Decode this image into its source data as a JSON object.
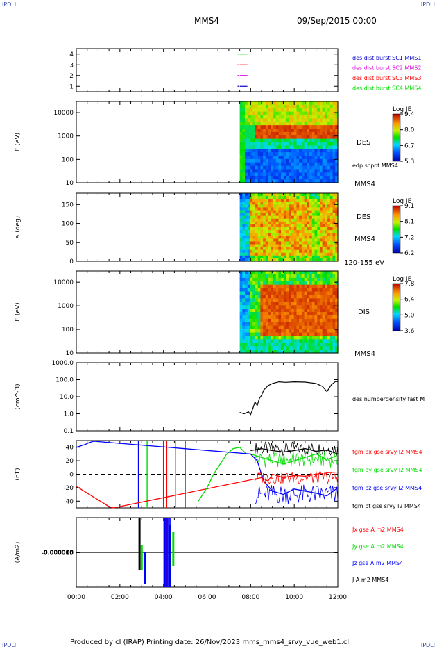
{
  "corners": {
    "tl": "IPDLI",
    "tr": "IPDLI",
    "bl": "IPDLI",
    "br": "IPDLI"
  },
  "header": {
    "title": "MMS4",
    "datetime": "09/Sep/2015 00:00"
  },
  "footer": {
    "text": "Produced by cl (IRAP)   Printing date: 26/Nov/2023   mms_mms4_srvy_vue_web1.cl"
  },
  "colors": {
    "red": "#ff0000",
    "green": "#00dd00",
    "blue": "#0000ff",
    "black": "#000000",
    "magenta": "#dd00dd",
    "legend_blue": "#0000cc"
  },
  "chart_data": [
    {
      "id": "burst-availability",
      "type": "scatter",
      "ylim": [
        0.5,
        4.5
      ],
      "yticks": [
        "1",
        "2",
        "3",
        "4"
      ],
      "legend": [
        {
          "label": "des dist burst SC1 MMS1",
          "color": "#0000cc"
        },
        {
          "label": "des dist burst SC2 MMS2",
          "color": "#dd00dd"
        },
        {
          "label": "des dist burst SC3 MMS3",
          "color": "#ff0000"
        },
        {
          "label": "des dist burst SC4 MMS4",
          "color": "#00dd00"
        }
      ],
      "series": [
        {
          "y": 4,
          "intervals": [
            [
              7.4,
              7.45
            ],
            [
              7.5,
              7.85
            ]
          ]
        },
        {
          "y": 3,
          "intervals": [
            [
              7.4,
              7.45
            ],
            [
              7.5,
              7.85
            ]
          ]
        },
        {
          "y": 2,
          "intervals": [
            [
              7.4,
              7.45
            ],
            [
              7.5,
              7.85
            ]
          ]
        },
        {
          "y": 1,
          "intervals": [
            [
              7.4,
              7.45
            ],
            [
              7.5,
              7.85
            ]
          ]
        }
      ]
    },
    {
      "id": "des-energy-spectrogram",
      "type": "heatmap",
      "ylabel": "E (eV)",
      "yscale": "log",
      "ylim": [
        10,
        30000
      ],
      "ytick_labels": [
        "10",
        "100",
        "1000",
        "10000"
      ],
      "side_labels": [
        "DES",
        "edp scpot MMS4",
        "MMS4"
      ],
      "colorbar": {
        "title": "Log JE",
        "ticks": [
          "9.4",
          "8.0",
          "6.7",
          "5.3"
        ],
        "range": [
          5.3,
          9.4
        ]
      },
      "data_start_hour": 7.5
    },
    {
      "id": "des-pitch-angle",
      "type": "heatmap",
      "ylabel": "a (deg)",
      "ylim": [
        0,
        180
      ],
      "ytick_labels": [
        "0",
        "50",
        "100",
        "150"
      ],
      "side_labels": [
        "DES",
        "MMS4",
        "120-155 eV"
      ],
      "colorbar": {
        "title": "Log JE",
        "ticks": [
          "9.1",
          "8.1",
          "7.2",
          "6.2"
        ],
        "range": [
          6.2,
          9.1
        ]
      },
      "data_start_hour": 7.5
    },
    {
      "id": "dis-energy-spectrogram",
      "type": "heatmap",
      "ylabel": "E (eV)",
      "yscale": "log",
      "ylim": [
        10,
        30000
      ],
      "ytick_labels": [
        "10",
        "100",
        "1000",
        "10000"
      ],
      "side_labels": [
        "DIS",
        "MMS4"
      ],
      "colorbar": {
        "title": "Log JE",
        "ticks": [
          "7.8",
          "6.4",
          "5.0",
          "3.6"
        ],
        "range": [
          3.6,
          7.8
        ]
      },
      "data_start_hour": 7.5
    },
    {
      "id": "density",
      "type": "line",
      "ylabel": "(cm^-3)",
      "yscale": "log",
      "ylim": [
        0.1,
        1000
      ],
      "ytick_labels": [
        "0.1",
        "1.0",
        "10.0",
        "100.0",
        "1000.0"
      ],
      "legend": [
        {
          "label": "des numberdensity fast M",
          "color": "#000000"
        }
      ],
      "series": [
        {
          "name": "des numberdensity fast M",
          "color": "#000000",
          "x": [
            7.5,
            7.7,
            7.9,
            8.0,
            8.1,
            8.2,
            8.3,
            8.4,
            8.5,
            8.6,
            8.8,
            9.0,
            9.3,
            9.6,
            10.0,
            10.5,
            11.0,
            11.3,
            11.5,
            11.7,
            11.9,
            12.0
          ],
          "y": [
            1.2,
            1.0,
            1.3,
            0.9,
            2.0,
            5.0,
            3.0,
            8.0,
            12,
            25,
            45,
            60,
            75,
            70,
            75,
            72,
            60,
            40,
            20,
            50,
            80,
            75
          ]
        }
      ]
    },
    {
      "id": "magnetic-field",
      "type": "line",
      "ylabel": "(nT)",
      "ylim": [
        -50,
        50
      ],
      "ytick_labels": [
        "-40",
        "-20",
        "0",
        "20",
        "40"
      ],
      "legend": [
        {
          "label": "fgm bx gse srvy l2 MMS4",
          "color": "#ff0000"
        },
        {
          "label": "fgm by gse srvy l2 MMS4",
          "color": "#00dd00"
        },
        {
          "label": "fgm bz gse srvy l2 MMS4",
          "color": "#0000ff"
        },
        {
          "label": "fgm bt gse srvy l2 MMS4",
          "color": "#000000"
        }
      ],
      "series": [
        {
          "name": "bx",
          "color": "#ff0000",
          "x": [
            0.0,
            0.3,
            0.6,
            0.9,
            1.2,
            1.5,
            1.7,
            8.5,
            8.8,
            9.0,
            9.5,
            10.0,
            10.5,
            11.0,
            11.5,
            12.0
          ],
          "y": [
            -18,
            -24,
            -30,
            -36,
            -42,
            -48,
            -50,
            -5,
            -10,
            0,
            -5,
            -2,
            -3,
            0,
            3,
            2
          ]
        },
        {
          "name": "by",
          "color": "#00dd00",
          "x": [
            5.6,
            6.0,
            6.3,
            6.6,
            6.9,
            7.2,
            7.5,
            7.8,
            8.0,
            8.5,
            9.0,
            9.5,
            10.0,
            10.5,
            11.0,
            11.5,
            12.0
          ],
          "y": [
            -40,
            -20,
            0,
            15,
            30,
            38,
            40,
            30,
            30,
            25,
            20,
            15,
            20,
            25,
            30,
            22,
            28
          ]
        },
        {
          "name": "bz",
          "color": "#0000ff",
          "x": [
            0.0,
            0.2,
            0.4,
            0.6,
            0.8,
            8.0,
            8.3,
            8.6,
            9.0,
            9.5,
            10.0,
            10.5,
            11.0,
            11.5,
            12.0
          ],
          "y": [
            40,
            42,
            44,
            47,
            49,
            30,
            20,
            -10,
            -25,
            -30,
            -22,
            -25,
            -28,
            -32,
            -20
          ]
        },
        {
          "name": "bt",
          "color": "#000000",
          "x": [
            8.0,
            8.5,
            9.0,
            9.5,
            10.0,
            10.5,
            11.0,
            11.5,
            12.0
          ],
          "y": [
            35,
            38,
            35,
            33,
            35,
            38,
            34,
            36,
            30
          ]
        }
      ],
      "dashed_zero_line": true
    },
    {
      "id": "current-density",
      "type": "line",
      "ylabel": "(A/m2)",
      "ylim": [
        -0.0001,
        0.0001
      ],
      "ytick_labels": [
        "-0.000010",
        "-0.000005",
        "0.000000",
        "0.000005",
        "0.000010"
      ],
      "legend": [
        {
          "label": "Jx gse A m2 MMS4",
          "color": "#ff0000"
        },
        {
          "label": "Jy gse A m2 MMS4",
          "color": "#00dd00"
        },
        {
          "label": "Jz gse A m2 MMS4",
          "color": "#0000ff"
        },
        {
          "label": "J A m2 MMS4",
          "color": "#000000"
        }
      ],
      "spikes": [
        {
          "x": 2.9,
          "top": 0.0001,
          "bottom": -5e-05,
          "color": "#000000"
        },
        {
          "x": 3.0,
          "top": 2e-05,
          "bottom": -5e-05,
          "color": "#00dd00"
        },
        {
          "x": 3.15,
          "top": 0.0,
          "bottom": -9e-05,
          "color": "#0000ff"
        },
        {
          "x": 4.05,
          "top": 0.0001,
          "bottom": -0.0001,
          "color": "#0000ff"
        },
        {
          "x": 4.15,
          "top": 0.0001,
          "bottom": -0.0001,
          "color": "#ff0000"
        },
        {
          "x": 4.3,
          "top": 8e-05,
          "bottom": -0.0001,
          "color": "#000000"
        },
        {
          "x": 4.45,
          "top": 6e-05,
          "bottom": -4e-05,
          "color": "#00dd00"
        }
      ]
    }
  ],
  "xaxis": {
    "ticks": [
      "00:00",
      "02:00",
      "04:00",
      "06:00",
      "08:00",
      "10:00",
      "12:00"
    ],
    "range": [
      0,
      12
    ]
  }
}
